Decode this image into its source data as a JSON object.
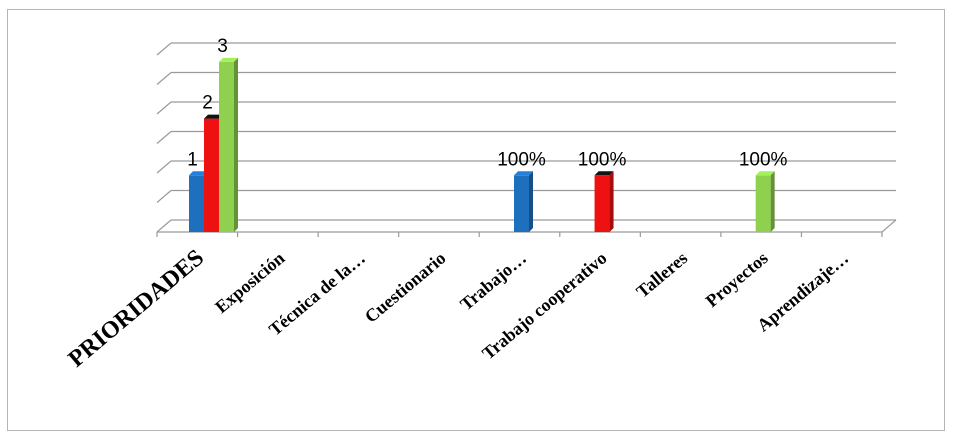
{
  "chart_data": {
    "type": "bar",
    "title": "",
    "xlabel": "",
    "ylabel": "",
    "categories": [
      "PRIORIDADES",
      "Exposición",
      "Técnica de la…",
      "Cuestionario",
      "Trabajo…",
      "Trabajo cooperativo",
      "Talleres",
      "Proyectos",
      "Aprendizaje…"
    ],
    "ylim": [
      0,
      3.4
    ],
    "grid": true,
    "legend": "none",
    "series": [
      {
        "color": "#1f6fbf",
        "values": [
          1,
          0,
          0,
          0,
          1,
          0,
          0,
          0,
          0
        ],
        "labels": [
          "1",
          "",
          "",
          "",
          "100%",
          "",
          "",
          "",
          ""
        ]
      },
      {
        "color": "#ee1111",
        "values": [
          2,
          0,
          0,
          0,
          0,
          1,
          0,
          0,
          0
        ],
        "labels": [
          "2",
          "",
          "",
          "",
          "",
          "100%",
          "",
          "",
          ""
        ]
      },
      {
        "color": "#8fd14f",
        "values": [
          3,
          0,
          0,
          0,
          0,
          0,
          0,
          1,
          0
        ],
        "labels": [
          "3",
          "",
          "",
          "",
          "",
          "",
          "",
          "100%",
          ""
        ]
      }
    ]
  }
}
